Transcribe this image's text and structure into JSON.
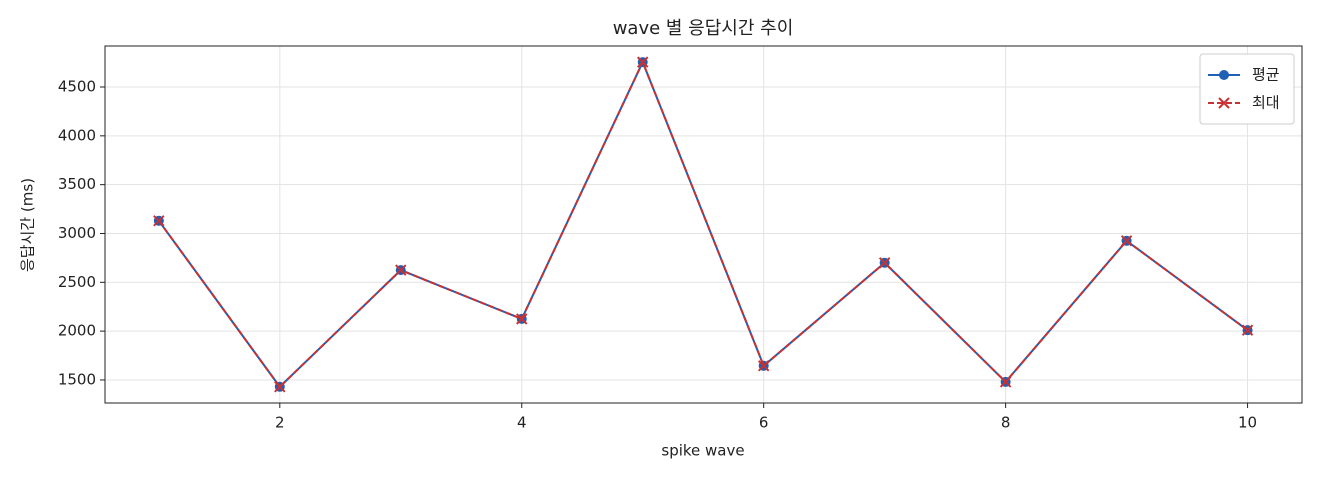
{
  "chart_data": {
    "type": "line",
    "title": "wave 별 응답시간 추이",
    "x_label": "spike wave",
    "y_label": "응답시간 (ms)",
    "x": [
      1,
      2,
      3,
      4,
      5,
      6,
      7,
      8,
      9,
      10
    ],
    "series": [
      {
        "name": "평균",
        "color": "#1f5fb4",
        "marker": "circle",
        "dash": false,
        "values": [
          3130,
          1430,
          2625,
          2125,
          4755,
          1645,
          2700,
          1480,
          2925,
          2010
        ]
      },
      {
        "name": "최대",
        "color": "#c83232",
        "marker": "x",
        "dash": true,
        "values": [
          3130,
          1430,
          2625,
          2125,
          4755,
          1645,
          2700,
          1480,
          2925,
          2010
        ]
      }
    ],
    "xlim": [
      0.555,
      10.45
    ],
    "ylim": [
      1264,
      4920
    ],
    "xticks": [
      2,
      4,
      6,
      8,
      10
    ],
    "yticks": [
      1500,
      2000,
      2500,
      3000,
      3500,
      4000,
      4500
    ],
    "grid": true,
    "legend": "upper right"
  }
}
